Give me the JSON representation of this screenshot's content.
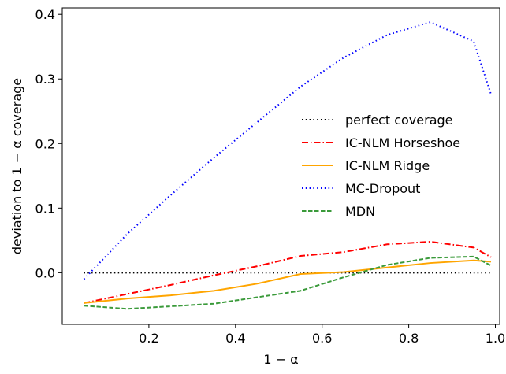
{
  "chart_data": {
    "type": "line",
    "title": "",
    "xlabel": "1 − α",
    "ylabel": "deviation to 1 − α coverage",
    "xlim": [
      0.0,
      1.01
    ],
    "ylim": [
      -0.08,
      0.41
    ],
    "xticks": [
      0.2,
      0.4,
      0.6,
      0.8,
      1.0
    ],
    "xtick_labels": [
      "0.2",
      "0.4",
      "0.6",
      "0.8",
      "1.0"
    ],
    "yticks": [
      0.0,
      0.1,
      0.2,
      0.3,
      0.4
    ],
    "ytick_labels": [
      "0.0",
      "0.1",
      "0.2",
      "0.3",
      "0.4"
    ],
    "grid": false,
    "legend_position": "center-right",
    "series": [
      {
        "name": "perfect coverage",
        "color": "#000000",
        "style": "dotted",
        "x": [
          0.05,
          0.99
        ],
        "y": [
          0.0,
          0.0
        ]
      },
      {
        "name": "IC-NLM Horseshoe",
        "color": "#ff0000",
        "style": "dashdot",
        "x": [
          0.05,
          0.15,
          0.25,
          0.35,
          0.45,
          0.55,
          0.65,
          0.75,
          0.85,
          0.95,
          0.99
        ],
        "y": [
          -0.047,
          -0.033,
          -0.019,
          -0.004,
          0.01,
          0.026,
          0.032,
          0.044,
          0.048,
          0.039,
          0.024
        ]
      },
      {
        "name": "IC-NLM Ridge",
        "color": "#ffa500",
        "style": "solid",
        "x": [
          0.05,
          0.15,
          0.25,
          0.35,
          0.45,
          0.55,
          0.65,
          0.75,
          0.85,
          0.95,
          0.99
        ],
        "y": [
          -0.047,
          -0.04,
          -0.035,
          -0.028,
          -0.017,
          -0.002,
          0.001,
          0.008,
          0.015,
          0.019,
          0.017
        ]
      },
      {
        "name": "MC-Dropout",
        "color": "#0000ff",
        "style": "dotted",
        "x": [
          0.05,
          0.15,
          0.25,
          0.35,
          0.45,
          0.55,
          0.65,
          0.75,
          0.85,
          0.95,
          0.99
        ],
        "y": [
          -0.01,
          0.06,
          0.12,
          0.178,
          0.233,
          0.288,
          0.333,
          0.368,
          0.388,
          0.358,
          0.276
        ]
      },
      {
        "name": "MDN",
        "color": "#3a9a3a",
        "style": "dashed",
        "x": [
          0.05,
          0.15,
          0.25,
          0.35,
          0.45,
          0.55,
          0.65,
          0.75,
          0.85,
          0.95,
          0.99
        ],
        "y": [
          -0.051,
          -0.056,
          -0.052,
          -0.048,
          -0.038,
          -0.028,
          -0.007,
          0.012,
          0.023,
          0.025,
          0.011
        ]
      }
    ]
  }
}
